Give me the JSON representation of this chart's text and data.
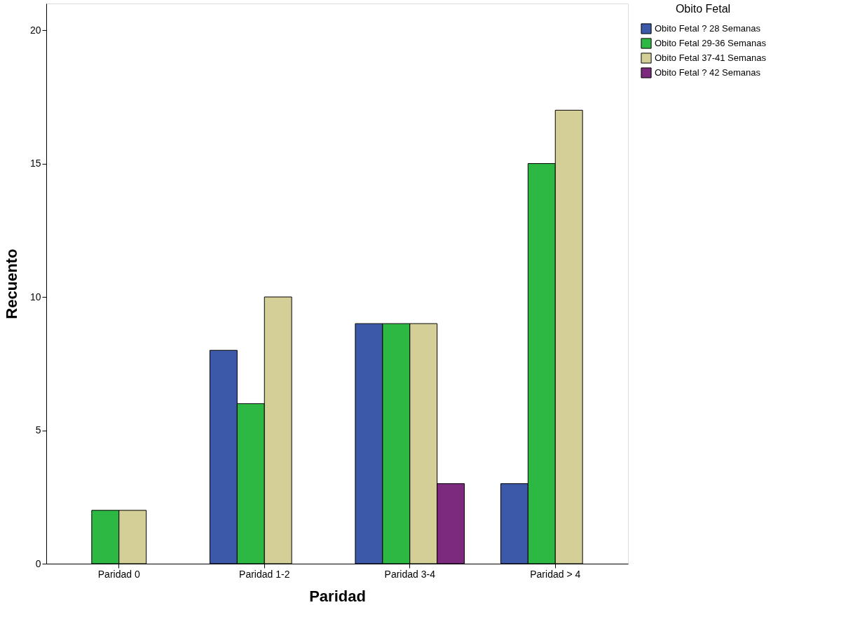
{
  "chart_data": {
    "type": "bar",
    "xlabel": "Paridad",
    "ylabel": "Recuento",
    "legend_title": "Obito Fetal",
    "categories": [
      "Paridad 0",
      "Paridad 1-2",
      "Paridad 3-4",
      "Paridad > 4"
    ],
    "series": [
      {
        "name": "Obito Fetal ? 28 Semanas",
        "color": "#3c58a8",
        "values": [
          null,
          8,
          9,
          3
        ]
      },
      {
        "name": "Obito Fetal 29-36 Semanas",
        "color": "#2db844",
        "values": [
          2,
          6,
          9,
          15
        ]
      },
      {
        "name": "Obito Fetal 37-41 Semanas",
        "color": "#d4cf97",
        "values": [
          2,
          10,
          9,
          17
        ]
      },
      {
        "name": "Obito Fetal ? 42 Semanas",
        "color": "#7b2a7e",
        "values": [
          null,
          null,
          3,
          null
        ]
      }
    ],
    "ylim": [
      0,
      21
    ],
    "yticks": [
      0,
      5,
      10,
      15,
      20
    ],
    "grid": false,
    "legend": "top right"
  }
}
